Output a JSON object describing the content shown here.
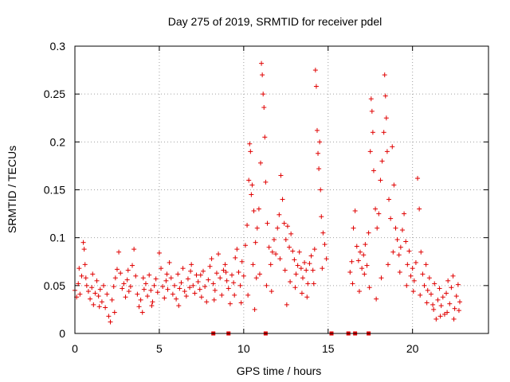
{
  "chart_data": {
    "type": "scatter",
    "title": "Day 275 of 2019, SRMTID for receiver pdel",
    "xlabel": "GPS time / hours",
    "ylabel": "SRMTID / TECUs",
    "xlim": [
      0,
      24.5
    ],
    "ylim": [
      0,
      0.3
    ],
    "grid": true,
    "marker": "+",
    "color": "#e00000",
    "x_ticks": [
      0,
      5,
      10,
      15,
      20
    ],
    "x_tick_labels": [
      "0",
      "5",
      "10",
      "15",
      "20"
    ],
    "y_ticks": [
      0,
      0.05,
      0.1,
      0.15,
      0.2,
      0.25,
      0.3
    ],
    "y_tick_labels": [
      "0",
      "0.05",
      "0.1",
      "0.15",
      "0.2",
      "0.25",
      "0.3"
    ],
    "series": [
      {
        "name": "SRMTID",
        "points": [
          [
            0.0,
            0.045
          ],
          [
            0.1,
            0.038
          ],
          [
            0.2,
            0.052
          ],
          [
            0.3,
            0.041
          ],
          [
            0.4,
            0.06
          ],
          [
            0.5,
            0.095
          ],
          [
            0.55,
            0.088
          ],
          [
            0.6,
            0.072
          ],
          [
            0.7,
            0.05
          ],
          [
            0.8,
            0.044
          ],
          [
            0.9,
            0.036
          ],
          [
            1.0,
            0.048
          ],
          [
            1.1,
            0.03
          ],
          [
            1.2,
            0.042
          ],
          [
            1.3,
            0.055
          ],
          [
            1.4,
            0.039
          ],
          [
            1.5,
            0.046
          ],
          [
            1.6,
            0.033
          ],
          [
            1.7,
            0.05
          ],
          [
            1.8,
            0.027
          ],
          [
            1.9,
            0.041
          ],
          [
            2.0,
            0.018
          ],
          [
            2.1,
            0.012
          ],
          [
            2.2,
            0.035
          ],
          [
            2.3,
            0.049
          ],
          [
            2.4,
            0.058
          ],
          [
            2.5,
            0.067
          ],
          [
            2.6,
            0.085
          ],
          [
            2.7,
            0.063
          ],
          [
            2.8,
            0.047
          ],
          [
            2.9,
            0.052
          ],
          [
            3.0,
            0.038
          ],
          [
            3.1,
            0.056
          ],
          [
            3.2,
            0.044
          ],
          [
            3.3,
            0.049
          ],
          [
            3.4,
            0.071
          ],
          [
            3.5,
            0.088
          ],
          [
            3.6,
            0.06
          ],
          [
            3.7,
            0.041
          ],
          [
            3.8,
            0.028
          ],
          [
            3.9,
            0.035
          ],
          [
            4.0,
            0.022
          ],
          [
            4.1,
            0.046
          ],
          [
            4.2,
            0.052
          ],
          [
            4.3,
            0.039
          ],
          [
            4.4,
            0.061
          ],
          [
            4.5,
            0.045
          ],
          [
            4.6,
            0.033
          ],
          [
            4.7,
            0.05
          ],
          [
            4.8,
            0.057
          ],
          [
            4.9,
            0.043
          ],
          [
            5.0,
            0.084
          ],
          [
            5.1,
            0.068
          ],
          [
            5.2,
            0.049
          ],
          [
            5.3,
            0.037
          ],
          [
            5.4,
            0.055
          ],
          [
            5.5,
            0.046
          ],
          [
            5.6,
            0.074
          ],
          [
            5.7,
            0.058
          ],
          [
            5.8,
            0.041
          ],
          [
            5.9,
            0.05
          ],
          [
            6.0,
            0.036
          ],
          [
            6.1,
            0.062
          ],
          [
            6.2,
            0.047
          ],
          [
            6.3,
            0.053
          ],
          [
            6.4,
            0.068
          ],
          [
            6.5,
            0.044
          ],
          [
            6.6,
            0.039
          ],
          [
            6.7,
            0.057
          ],
          [
            6.8,
            0.048
          ],
          [
            6.9,
            0.072
          ],
          [
            7.0,
            0.05
          ],
          [
            7.1,
            0.042
          ],
          [
            7.2,
            0.061
          ],
          [
            7.3,
            0.054
          ],
          [
            7.4,
            0.046
          ],
          [
            7.5,
            0.038
          ],
          [
            7.6,
            0.065
          ],
          [
            7.7,
            0.049
          ],
          [
            7.8,
            0.033
          ],
          [
            7.9,
            0.056
          ],
          [
            8.0,
            0.07
          ],
          [
            8.1,
            0.078
          ],
          [
            8.2,
            0.052
          ],
          [
            8.3,
            0.045
          ],
          [
            8.4,
            0.063
          ],
          [
            8.5,
            0.083
          ],
          [
            8.6,
            0.058
          ],
          [
            8.7,
            0.04
          ],
          [
            8.8,
            0.066
          ],
          [
            8.9,
            0.072
          ],
          [
            9.0,
            0.055
          ],
          [
            9.1,
            0.047
          ],
          [
            9.2,
            0.031
          ],
          [
            9.3,
            0.061
          ],
          [
            9.4,
            0.053
          ],
          [
            9.5,
            0.079
          ],
          [
            9.6,
            0.088
          ],
          [
            9.7,
            0.064
          ],
          [
            9.8,
            0.05
          ],
          [
            9.9,
            0.075
          ],
          [
            10.0,
            0.06
          ],
          [
            10.1,
            0.092
          ],
          [
            10.2,
            0.113
          ],
          [
            10.3,
            0.16
          ],
          [
            10.35,
            0.198
          ],
          [
            10.4,
            0.19
          ],
          [
            10.45,
            0.145
          ],
          [
            10.5,
            0.155
          ],
          [
            10.6,
            0.128
          ],
          [
            10.7,
            0.095
          ],
          [
            10.8,
            0.11
          ],
          [
            10.9,
            0.13
          ],
          [
            11.0,
            0.178
          ],
          [
            11.05,
            0.282
          ],
          [
            11.1,
            0.27
          ],
          [
            11.15,
            0.25
          ],
          [
            11.2,
            0.236
          ],
          [
            11.25,
            0.205
          ],
          [
            11.3,
            0.158
          ],
          [
            11.4,
            0.115
          ],
          [
            11.5,
            0.09
          ],
          [
            11.6,
            0.072
          ],
          [
            11.7,
            0.085
          ],
          [
            11.8,
            0.098
          ],
          [
            11.9,
            0.083
          ],
          [
            12.0,
            0.11
          ],
          [
            12.1,
            0.124
          ],
          [
            12.2,
            0.165
          ],
          [
            12.3,
            0.14
          ],
          [
            12.4,
            0.115
          ],
          [
            12.5,
            0.098
          ],
          [
            12.6,
            0.112
          ],
          [
            12.7,
            0.09
          ],
          [
            12.8,
            0.104
          ],
          [
            12.9,
            0.086
          ],
          [
            13.0,
            0.077
          ],
          [
            13.1,
            0.062
          ],
          [
            13.2,
            0.071
          ],
          [
            13.3,
            0.085
          ],
          [
            13.4,
            0.068
          ],
          [
            13.5,
            0.058
          ],
          [
            13.6,
            0.074
          ],
          [
            13.7,
            0.066
          ],
          [
            13.8,
            0.052
          ],
          [
            13.9,
            0.073
          ],
          [
            14.0,
            0.081
          ],
          [
            14.1,
            0.066
          ],
          [
            14.2,
            0.088
          ],
          [
            14.25,
            0.275
          ],
          [
            14.3,
            0.258
          ],
          [
            14.35,
            0.212
          ],
          [
            14.4,
            0.188
          ],
          [
            14.45,
            0.172
          ],
          [
            14.5,
            0.2
          ],
          [
            14.55,
            0.15
          ],
          [
            14.6,
            0.122
          ],
          [
            14.7,
            0.105
          ],
          [
            14.8,
            0.093
          ],
          [
            14.9,
            0.078
          ],
          [
            16.3,
            0.064
          ],
          [
            16.4,
            0.075
          ],
          [
            16.5,
            0.11
          ],
          [
            16.6,
            0.128
          ],
          [
            16.7,
            0.091
          ],
          [
            16.8,
            0.076
          ],
          [
            16.9,
            0.085
          ],
          [
            17.0,
            0.068
          ],
          [
            17.1,
            0.082
          ],
          [
            17.2,
            0.093
          ],
          [
            17.3,
            0.071
          ],
          [
            17.4,
            0.105
          ],
          [
            17.5,
            0.19
          ],
          [
            17.55,
            0.245
          ],
          [
            17.6,
            0.232
          ],
          [
            17.65,
            0.21
          ],
          [
            17.7,
            0.17
          ],
          [
            17.8,
            0.13
          ],
          [
            17.9,
            0.11
          ],
          [
            18.0,
            0.125
          ],
          [
            18.1,
            0.16
          ],
          [
            18.2,
            0.18
          ],
          [
            18.3,
            0.21
          ],
          [
            18.35,
            0.27
          ],
          [
            18.4,
            0.248
          ],
          [
            18.45,
            0.225
          ],
          [
            18.5,
            0.19
          ],
          [
            18.6,
            0.14
          ],
          [
            18.7,
            0.12
          ],
          [
            18.8,
            0.195
          ],
          [
            18.9,
            0.155
          ],
          [
            19.0,
            0.11
          ],
          [
            19.1,
            0.098
          ],
          [
            19.2,
            0.082
          ],
          [
            19.3,
            0.09
          ],
          [
            19.4,
            0.108
          ],
          [
            19.5,
            0.125
          ],
          [
            19.6,
            0.096
          ],
          [
            19.7,
            0.072
          ],
          [
            19.8,
            0.086
          ],
          [
            19.9,
            0.06
          ],
          [
            20.0,
            0.068
          ],
          [
            20.1,
            0.055
          ],
          [
            20.2,
            0.074
          ],
          [
            20.3,
            0.162
          ],
          [
            20.4,
            0.13
          ],
          [
            20.5,
            0.085
          ],
          [
            20.6,
            0.062
          ],
          [
            20.7,
            0.05
          ],
          [
            20.8,
            0.072
          ],
          [
            20.9,
            0.045
          ],
          [
            21.0,
            0.058
          ],
          [
            21.1,
            0.041
          ],
          [
            21.2,
            0.03
          ],
          [
            21.3,
            0.052
          ],
          [
            21.4,
            0.015
          ],
          [
            21.5,
            0.035
          ],
          [
            21.6,
            0.047
          ],
          [
            21.7,
            0.029
          ],
          [
            21.8,
            0.038
          ],
          [
            21.9,
            0.02
          ],
          [
            22.0,
            0.042
          ],
          [
            22.1,
            0.055
          ],
          [
            22.2,
            0.031
          ],
          [
            22.3,
            0.048
          ],
          [
            22.4,
            0.06
          ],
          [
            22.5,
            0.026
          ],
          [
            22.6,
            0.039
          ],
          [
            22.7,
            0.051
          ],
          [
            22.8,
            0.033
          ],
          [
            0.25,
            0.068
          ],
          [
            0.65,
            0.058
          ],
          [
            1.05,
            0.062
          ],
          [
            1.45,
            0.028
          ],
          [
            2.35,
            0.022
          ],
          [
            3.15,
            0.066
          ],
          [
            4.05,
            0.058
          ],
          [
            4.55,
            0.029
          ],
          [
            5.45,
            0.062
          ],
          [
            6.15,
            0.029
          ],
          [
            6.85,
            0.065
          ],
          [
            7.45,
            0.061
          ],
          [
            8.25,
            0.035
          ],
          [
            8.95,
            0.064
          ],
          [
            9.45,
            0.04
          ],
          [
            9.85,
            0.032
          ],
          [
            10.25,
            0.04
          ],
          [
            10.55,
            0.072
          ],
          [
            10.75,
            0.058
          ],
          [
            10.95,
            0.062
          ],
          [
            11.35,
            0.05
          ],
          [
            11.65,
            0.044
          ],
          [
            12.15,
            0.078
          ],
          [
            12.45,
            0.066
          ],
          [
            12.75,
            0.054
          ],
          [
            13.05,
            0.048
          ],
          [
            13.45,
            0.042
          ],
          [
            13.75,
            0.038
          ],
          [
            14.15,
            0.052
          ],
          [
            14.65,
            0.068
          ],
          [
            16.45,
            0.052
          ],
          [
            16.85,
            0.044
          ],
          [
            17.15,
            0.062
          ],
          [
            17.45,
            0.048
          ],
          [
            17.85,
            0.036
          ],
          [
            18.15,
            0.058
          ],
          [
            18.55,
            0.072
          ],
          [
            18.85,
            0.085
          ],
          [
            19.25,
            0.064
          ],
          [
            19.65,
            0.05
          ],
          [
            20.05,
            0.044
          ],
          [
            20.45,
            0.04
          ],
          [
            20.85,
            0.032
          ],
          [
            21.25,
            0.025
          ],
          [
            21.65,
            0.018
          ],
          [
            22.05,
            0.022
          ],
          [
            22.45,
            0.015
          ],
          [
            22.75,
            0.024
          ],
          [
            12.55,
            0.03
          ],
          [
            10.65,
            0.025
          ]
        ]
      }
    ],
    "gap_markers_x": [
      8.2,
      9.1,
      11.3,
      15.2,
      16.2,
      16.6,
      17.4
    ]
  }
}
